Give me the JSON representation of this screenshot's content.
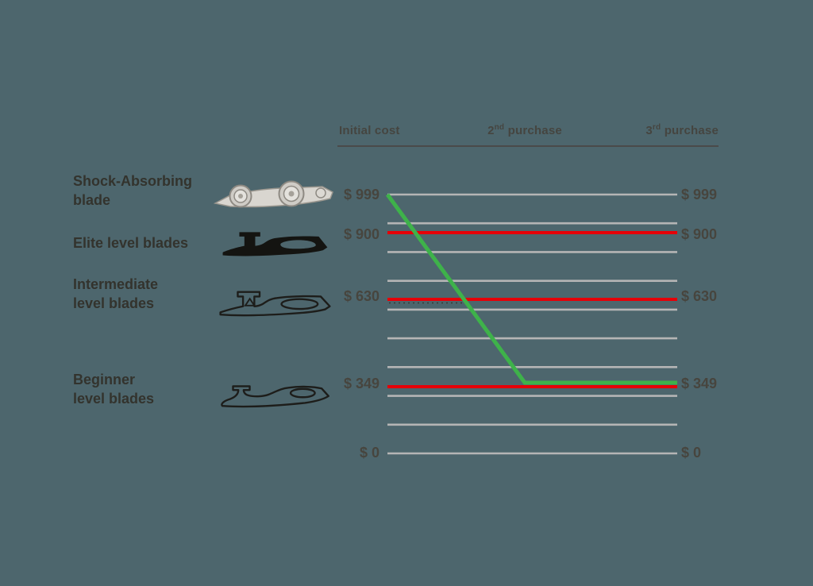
{
  "colors": {
    "background": "#4d666d",
    "gridline": "#b5b5b5",
    "red_line": "#e60008",
    "green_line": "#3eb24a",
    "text_dark": "#33332d",
    "text_muted": "#47453e",
    "header_rule": "#4a4a4a"
  },
  "header": {
    "columns": [
      {
        "prefix": "Initial cost",
        "sup": "",
        "suffix": ""
      },
      {
        "prefix": "2",
        "sup": "nd",
        "suffix": " purchase"
      },
      {
        "prefix": "3",
        "sup": "rd",
        "suffix": " purchase"
      }
    ]
  },
  "rows": [
    {
      "label_line1": "Shock-Absorbing",
      "label_line2": "blade",
      "icon": "shock-absorbing-blade"
    },
    {
      "label_line1": "Elite level blades",
      "label_line2": "",
      "icon": "elite-level-blade"
    },
    {
      "label_line1": "Intermediate",
      "label_line2": "level blades",
      "icon": "intermediate-level-blade"
    },
    {
      "label_line1": "Beginner",
      "label_line2": "level blades",
      "icon": "beginner-level-blade"
    }
  ],
  "chart_data": {
    "type": "line",
    "x_categories": [
      "Initial cost",
      "2nd purchase",
      "3rd purchase"
    ],
    "y_axis_labels": [
      "$ 999",
      "$ 900",
      "$ 630",
      "$ 349",
      "$ 0"
    ],
    "y_axis_values": [
      999,
      900,
      630,
      349,
      0
    ],
    "ylim": [
      0,
      999
    ],
    "grid": true,
    "gridline_count": 10,
    "y_labels_shown_on": "both-sides",
    "series": [
      {
        "name": "Shock-Absorbing blade",
        "color": "#3eb24a",
        "values": [
          999,
          349,
          349
        ]
      },
      {
        "name": "Elite level blades",
        "color": "#e60008",
        "values": [
          900,
          900,
          900
        ]
      },
      {
        "name": "Intermediate level blades",
        "color": "#e60008",
        "values": [
          630,
          630,
          630
        ]
      },
      {
        "name": "Beginner level blades",
        "color": "#e60008",
        "values": [
          349,
          349,
          349
        ]
      }
    ]
  }
}
